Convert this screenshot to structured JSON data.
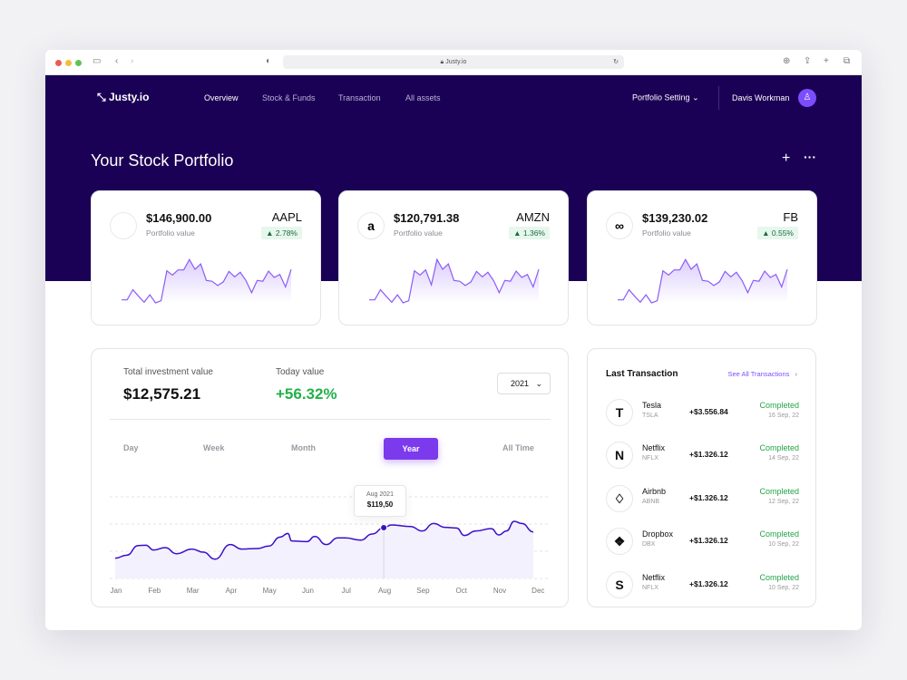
{
  "browser": {
    "url": "Justy.io"
  },
  "nav": {
    "brand": "Justy.io",
    "items": [
      "Overview",
      "Stock & Funds",
      "Transaction",
      "All assets"
    ],
    "portfolio_setting": "Portfolio Setting",
    "user": "Davis Workman"
  },
  "page": {
    "title": "Your Stock Portfolio"
  },
  "colors": {
    "header": "#1b0155",
    "accent": "#7c4dff",
    "line": "#3a10c8",
    "positive": "#22a447"
  },
  "stocks": [
    {
      "icon": "apple-icon",
      "value": "$146,900.00",
      "label": "Portfolio value",
      "ticker": "AAPL",
      "change": "2.78%",
      "spark": [
        1,
        1,
        4.4,
        2.2,
        0.2,
        2.7,
        0,
        0.7,
        10.7,
        9.3,
        11,
        11,
        14.5,
        11.2,
        13,
        7.5,
        7.2,
        5.8,
        7,
        10.5,
        8.7,
        10.2,
        7.5,
        3.4,
        7.5,
        7.2,
        10.6,
        8.5,
        9.5,
        5.3,
        11.2
      ]
    },
    {
      "icon": "amazon-icon",
      "value": "$120,791.38",
      "label": "Portfolio value",
      "ticker": "AMZN",
      "change": "1.36%",
      "spark": [
        1,
        1,
        4.4,
        2.2,
        0.2,
        2.7,
        0,
        0.7,
        10.7,
        9.3,
        11,
        6,
        14.5,
        11.2,
        13,
        7.5,
        7.2,
        5.8,
        7,
        10.5,
        8.7,
        10.2,
        7.5,
        3.4,
        7.5,
        7.2,
        10.6,
        8.5,
        9.5,
        5.3,
        11.2
      ]
    },
    {
      "icon": "meta-icon",
      "value": "$139,230.02",
      "label": "Portfolio value",
      "ticker": "FB",
      "change": "0.55%",
      "spark": [
        1,
        1,
        4.4,
        2.2,
        0.2,
        2.7,
        0,
        0.7,
        10.7,
        9.3,
        11,
        11,
        14.5,
        11.2,
        13,
        7.5,
        7.2,
        5.8,
        7,
        10.5,
        8.7,
        10.2,
        7.5,
        3.4,
        7.5,
        7.2,
        10.6,
        8.5,
        9.5,
        5.3,
        11.2
      ]
    }
  ],
  "investment": {
    "total_label": "Total investment value",
    "total": "$12,575.21",
    "today_label": "Today value",
    "today": "+56.32%",
    "year": "2021",
    "tabs": [
      "Day",
      "Week",
      "Month",
      "Year",
      "All Time"
    ],
    "active_tab": "Year",
    "tooltip": {
      "date": "Aug 2021",
      "value": "$119,50"
    }
  },
  "chart_data": {
    "type": "area",
    "categories": [
      "Jan",
      "Feb",
      "Mar",
      "Apr",
      "May",
      "Jun",
      "Jul",
      "Aug",
      "Sep",
      "Oct",
      "Nov",
      "Dec"
    ],
    "x": [
      0,
      0.3,
      0.6,
      0.8,
      1.0,
      1.3,
      1.6,
      2.0,
      2.3,
      2.6,
      3.0,
      3.3,
      3.7,
      4.0,
      4.3,
      4.5,
      4.6,
      5.0,
      5.2,
      5.5,
      5.8,
      6.0,
      6.4,
      6.7,
      7.0,
      7.2,
      7.7,
      8.0,
      8.3,
      8.6,
      8.9,
      9.1,
      9.4,
      9.8,
      10.0,
      10.2,
      10.4,
      10.6,
      10.9
    ],
    "y": [
      94.9,
      97.1,
      104.2,
      104.4,
      100.9,
      102.7,
      98.2,
      101.6,
      99.3,
      94.2,
      104.9,
      101.6,
      102,
      103.8,
      110.4,
      113.1,
      107.6,
      107.1,
      110.9,
      104.9,
      109.8,
      109.8,
      108.2,
      112.7,
      117.3,
      119.3,
      118.2,
      114.9,
      120.4,
      117.6,
      117.1,
      111.6,
      114.9,
      116.7,
      112,
      114.9,
      122,
      120.4,
      114.2
    ],
    "ylim": [
      80,
      140
    ],
    "grid": true,
    "highlight": {
      "x": 7,
      "label": "Aug 2021",
      "value": "$119,50"
    }
  },
  "transactions": {
    "title": "Last Transaction",
    "see_all": "See All Transactions",
    "items": [
      {
        "icon": "tesla-icon",
        "name": "Tesla",
        "ticker": "TSLA",
        "amount": "+$3.556.84",
        "status": "Completed",
        "date": "16 Sep, 22"
      },
      {
        "icon": "netflix-icon",
        "name": "Netflix",
        "ticker": "NFLX",
        "amount": "+$1.326.12",
        "status": "Completed",
        "date": "14 Sep, 22"
      },
      {
        "icon": "airbnb-icon",
        "name": "Airbnb",
        "ticker": "ABNB",
        "amount": "+$1.326.12",
        "status": "Completed",
        "date": "12 Sep, 22"
      },
      {
        "icon": "dropbox-icon",
        "name": "Dropbox",
        "ticker": "DBX",
        "amount": "+$1.326.12",
        "status": "Completed",
        "date": "10 Sep, 22"
      },
      {
        "icon": "shopify-icon",
        "name": "Netflix",
        "ticker": "NFLX",
        "amount": "+$1.326.12",
        "status": "Completed",
        "date": "10 Sep, 22"
      }
    ]
  }
}
